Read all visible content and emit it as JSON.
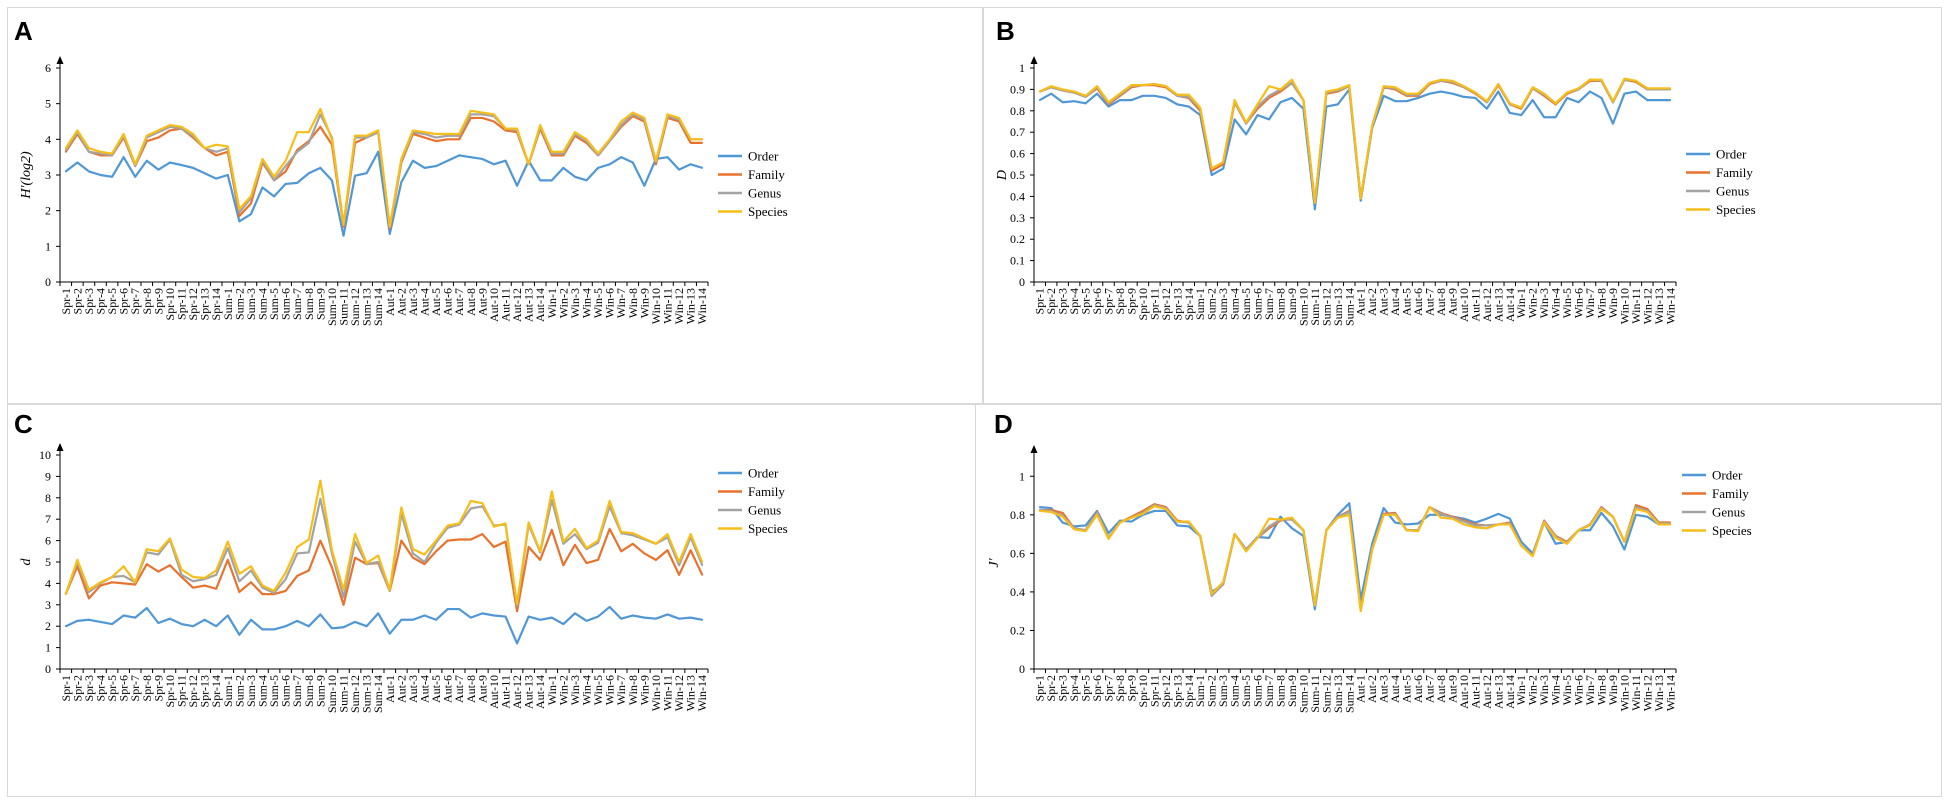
{
  "colors": {
    "Order": "#4f97d6",
    "Family": "#e8722e",
    "Genus": "#a3a3a3",
    "Species": "#f7bd18"
  },
  "categories": [
    "Spr-1",
    "Spr-2",
    "Spr-3",
    "Spr-4",
    "Spr-5",
    "Spr-6",
    "Spr-7",
    "Spr-8",
    "Spr-9",
    "Spr-10",
    "Spr-11",
    "Spr-12",
    "Spr-13",
    "Spr-14",
    "Sum-1",
    "Sum-2",
    "Sum-3",
    "Sum-4",
    "Sum-5",
    "Sum-6",
    "Sum-7",
    "Sum-8",
    "Sum-9",
    "Sum-10",
    "Sum-11",
    "Sum-12",
    "Sum-13",
    "Sum-14",
    "Aut-1",
    "Aut-2",
    "Aut-3",
    "Aut-4",
    "Aut-5",
    "Aut-6",
    "Aut-7",
    "Aut-8",
    "Aut-9",
    "Aut-10",
    "Aut-11",
    "Aut-12",
    "Aut-13",
    "Aut-14",
    "Win-1",
    "Win-2",
    "Win-3",
    "Win-4",
    "Win-5",
    "Win-6",
    "Win-7",
    "Win-8",
    "Win-9",
    "Win-10",
    "Win-11",
    "Win-12",
    "Win-13",
    "Win-14"
  ],
  "chart_data": [
    {
      "panel": "A",
      "type": "line",
      "title": "",
      "xlabel": "",
      "ylabel": "H'(log2)",
      "ylim": [
        0,
        6
      ],
      "yticks": [
        0,
        1,
        2,
        3,
        4,
        5,
        6
      ],
      "series": [
        {
          "name": "Order",
          "values": [
            3.1,
            3.35,
            3.1,
            3.0,
            2.95,
            3.5,
            2.95,
            3.4,
            3.15,
            3.35,
            3.28,
            3.2,
            3.05,
            2.9,
            3.0,
            1.7,
            1.9,
            2.65,
            2.4,
            2.75,
            2.78,
            3.05,
            3.2,
            2.85,
            1.3,
            2.98,
            3.05,
            3.65,
            1.35,
            2.8,
            3.4,
            3.2,
            3.25,
            3.4,
            3.55,
            3.5,
            3.45,
            3.3,
            3.4,
            2.7,
            3.4,
            2.85,
            2.85,
            3.2,
            2.95,
            2.85,
            3.2,
            3.3,
            3.5,
            3.35,
            2.7,
            3.45,
            3.5,
            3.15,
            3.3,
            3.2
          ]
        },
        {
          "name": "Family",
          "values": [
            3.65,
            4.15,
            3.65,
            3.55,
            3.55,
            4.05,
            3.25,
            3.95,
            4.05,
            4.25,
            4.3,
            4.05,
            3.75,
            3.55,
            3.65,
            1.85,
            2.2,
            3.35,
            2.85,
            3.1,
            3.7,
            3.95,
            4.35,
            3.85,
            1.55,
            3.9,
            4.05,
            4.2,
            1.5,
            3.35,
            4.15,
            4.05,
            3.95,
            4.0,
            4.0,
            4.6,
            4.6,
            4.5,
            4.25,
            4.2,
            3.3,
            4.3,
            3.55,
            3.55,
            4.1,
            3.9,
            3.55,
            3.95,
            4.35,
            4.65,
            4.5,
            3.3,
            4.6,
            4.5,
            3.9,
            3.9
          ]
        },
        {
          "name": "Genus",
          "values": [
            3.7,
            4.2,
            3.65,
            3.6,
            3.55,
            4.1,
            3.25,
            4.05,
            4.2,
            4.35,
            4.3,
            4.1,
            3.75,
            3.65,
            3.75,
            1.95,
            2.35,
            3.4,
            2.85,
            3.25,
            3.65,
            3.9,
            4.7,
            4.05,
            1.6,
            4.05,
            4.05,
            4.2,
            1.55,
            3.4,
            4.2,
            4.15,
            4.05,
            4.1,
            4.1,
            4.7,
            4.7,
            4.65,
            4.3,
            4.25,
            3.3,
            4.35,
            3.6,
            3.6,
            4.15,
            3.95,
            3.55,
            3.95,
            4.4,
            4.7,
            4.55,
            3.35,
            4.65,
            4.55,
            4.0,
            4.0
          ]
        },
        {
          "name": "Species",
          "values": [
            3.75,
            4.25,
            3.75,
            3.65,
            3.6,
            4.15,
            3.3,
            4.1,
            4.25,
            4.4,
            4.35,
            4.15,
            3.75,
            3.85,
            3.8,
            2.05,
            2.4,
            3.45,
            2.95,
            3.4,
            4.2,
            4.2,
            4.85,
            4.0,
            1.6,
            4.1,
            4.1,
            4.25,
            1.55,
            3.45,
            4.25,
            4.2,
            4.15,
            4.15,
            4.15,
            4.8,
            4.75,
            4.7,
            4.3,
            4.3,
            3.3,
            4.4,
            3.65,
            3.65,
            4.2,
            4.0,
            3.6,
            4.0,
            4.5,
            4.75,
            4.6,
            3.4,
            4.7,
            4.6,
            4.0,
            4.0
          ]
        }
      ],
      "legend": [
        "Order",
        "Family",
        "Genus",
        "Species"
      ],
      "legend_position": "right"
    },
    {
      "panel": "B",
      "type": "line",
      "title": "",
      "xlabel": "",
      "ylabel": "D",
      "ylim": [
        0,
        1
      ],
      "yticks": [
        0,
        0.1,
        0.2,
        0.3,
        0.4,
        0.5,
        0.6,
        0.7,
        0.8,
        0.9,
        1
      ],
      "series": [
        {
          "name": "Order",
          "values": [
            0.85,
            0.88,
            0.84,
            0.845,
            0.835,
            0.88,
            0.82,
            0.85,
            0.85,
            0.87,
            0.87,
            0.86,
            0.83,
            0.82,
            0.78,
            0.5,
            0.53,
            0.76,
            0.69,
            0.78,
            0.76,
            0.84,
            0.86,
            0.81,
            0.34,
            0.82,
            0.83,
            0.9,
            0.38,
            0.72,
            0.87,
            0.845,
            0.845,
            0.86,
            0.88,
            0.89,
            0.88,
            0.865,
            0.86,
            0.81,
            0.89,
            0.79,
            0.78,
            0.85,
            0.77,
            0.77,
            0.86,
            0.84,
            0.89,
            0.86,
            0.74,
            0.88,
            0.89,
            0.85,
            0.85,
            0.85
          ]
        },
        {
          "name": "Family",
          "values": [
            0.89,
            0.91,
            0.895,
            0.885,
            0.865,
            0.905,
            0.83,
            0.87,
            0.91,
            0.92,
            0.92,
            0.91,
            0.87,
            0.86,
            0.8,
            0.52,
            0.55,
            0.84,
            0.74,
            0.81,
            0.86,
            0.89,
            0.93,
            0.85,
            0.37,
            0.88,
            0.89,
            0.915,
            0.39,
            0.73,
            0.91,
            0.9,
            0.87,
            0.87,
            0.925,
            0.94,
            0.93,
            0.91,
            0.88,
            0.84,
            0.92,
            0.83,
            0.81,
            0.905,
            0.87,
            0.83,
            0.88,
            0.9,
            0.94,
            0.94,
            0.84,
            0.945,
            0.935,
            0.9,
            0.9,
            0.9
          ]
        },
        {
          "name": "Genus",
          "values": [
            0.89,
            0.91,
            0.895,
            0.885,
            0.865,
            0.91,
            0.835,
            0.875,
            0.915,
            0.92,
            0.925,
            0.915,
            0.87,
            0.865,
            0.81,
            0.53,
            0.56,
            0.845,
            0.74,
            0.82,
            0.87,
            0.9,
            0.93,
            0.85,
            0.37,
            0.885,
            0.895,
            0.915,
            0.39,
            0.73,
            0.91,
            0.905,
            0.875,
            0.875,
            0.93,
            0.94,
            0.935,
            0.91,
            0.885,
            0.84,
            0.925,
            0.83,
            0.815,
            0.905,
            0.875,
            0.835,
            0.885,
            0.9,
            0.945,
            0.94,
            0.84,
            0.945,
            0.94,
            0.9,
            0.9,
            0.9
          ]
        },
        {
          "name": "Species",
          "values": [
            0.89,
            0.915,
            0.9,
            0.89,
            0.87,
            0.915,
            0.84,
            0.88,
            0.92,
            0.92,
            0.925,
            0.915,
            0.875,
            0.875,
            0.815,
            0.53,
            0.56,
            0.85,
            0.745,
            0.83,
            0.915,
            0.9,
            0.945,
            0.85,
            0.37,
            0.89,
            0.9,
            0.92,
            0.39,
            0.73,
            0.915,
            0.91,
            0.88,
            0.88,
            0.93,
            0.945,
            0.94,
            0.915,
            0.885,
            0.845,
            0.925,
            0.835,
            0.815,
            0.91,
            0.88,
            0.835,
            0.885,
            0.905,
            0.945,
            0.945,
            0.845,
            0.95,
            0.94,
            0.905,
            0.905,
            0.905
          ]
        }
      ],
      "legend": [
        "Order",
        "Family",
        "Genus",
        "Species"
      ],
      "legend_position": "right"
    },
    {
      "panel": "C",
      "type": "line",
      "title": "",
      "xlabel": "",
      "ylabel": "d",
      "ylim": [
        0,
        10
      ],
      "yticks": [
        0,
        1,
        2,
        3,
        4,
        5,
        6,
        7,
        8,
        9,
        10
      ],
      "series": [
        {
          "name": "Order",
          "values": [
            2.0,
            2.25,
            2.3,
            2.2,
            2.1,
            2.5,
            2.4,
            2.85,
            2.15,
            2.35,
            2.1,
            2.0,
            2.3,
            2.0,
            2.5,
            1.6,
            2.3,
            1.85,
            1.85,
            2.0,
            2.25,
            2.0,
            2.55,
            1.9,
            1.95,
            2.2,
            2.0,
            2.6,
            1.65,
            2.3,
            2.3,
            2.5,
            2.3,
            2.8,
            2.8,
            2.4,
            2.6,
            2.5,
            2.45,
            1.2,
            2.45,
            2.3,
            2.4,
            2.1,
            2.6,
            2.25,
            2.45,
            2.9,
            2.35,
            2.5,
            2.4,
            2.35,
            2.55,
            2.35,
            2.4,
            2.3
          ]
        },
        {
          "name": "Family",
          "values": [
            3.5,
            4.8,
            3.3,
            3.9,
            4.05,
            4.0,
            3.95,
            4.9,
            4.55,
            4.85,
            4.3,
            3.8,
            3.9,
            3.75,
            5.1,
            3.6,
            4.05,
            3.5,
            3.5,
            3.65,
            4.35,
            4.6,
            6.0,
            4.75,
            3.0,
            5.2,
            4.9,
            4.95,
            3.65,
            6.0,
            5.2,
            4.9,
            5.5,
            6.0,
            6.05,
            6.05,
            6.3,
            5.7,
            5.95,
            2.7,
            5.7,
            5.1,
            6.5,
            4.85,
            5.8,
            4.95,
            5.1,
            6.55,
            5.5,
            5.85,
            5.4,
            5.1,
            5.55,
            4.4,
            5.55,
            4.4
          ]
        },
        {
          "name": "Genus",
          "values": [
            3.5,
            5.0,
            3.6,
            4.0,
            4.3,
            4.35,
            4.05,
            5.45,
            5.35,
            6.05,
            4.4,
            4.1,
            4.2,
            4.4,
            5.65,
            4.1,
            4.6,
            3.8,
            3.55,
            4.2,
            5.4,
            5.45,
            7.95,
            5.4,
            3.35,
            5.95,
            4.9,
            5.0,
            3.65,
            7.25,
            5.4,
            5.0,
            5.9,
            6.6,
            6.75,
            7.5,
            7.6,
            6.7,
            6.75,
            2.95,
            6.75,
            5.45,
            7.9,
            5.85,
            6.3,
            5.6,
            5.9,
            7.6,
            6.35,
            6.25,
            6.05,
            5.85,
            6.15,
            4.85,
            6.15,
            4.85
          ]
        },
        {
          "name": "Species",
          "values": [
            3.5,
            5.1,
            3.7,
            4.05,
            4.3,
            4.8,
            4.05,
            5.6,
            5.5,
            6.1,
            4.65,
            4.3,
            4.25,
            4.6,
            5.95,
            4.45,
            4.8,
            3.9,
            3.65,
            4.5,
            5.7,
            6.05,
            8.8,
            5.55,
            3.7,
            6.3,
            4.95,
            5.3,
            3.7,
            7.55,
            5.6,
            5.35,
            6.0,
            6.7,
            6.8,
            7.85,
            7.75,
            6.65,
            6.8,
            3.05,
            6.85,
            5.5,
            8.3,
            5.95,
            6.55,
            5.65,
            6.0,
            7.85,
            6.4,
            6.35,
            6.1,
            5.85,
            6.3,
            5.0,
            6.3,
            5.0
          ]
        }
      ],
      "legend": [
        "Order",
        "Family",
        "Genus",
        "Species"
      ],
      "legend_position": "right"
    },
    {
      "panel": "D",
      "type": "line",
      "title": "",
      "xlabel": "",
      "ylabel": "J'",
      "ylim": [
        0,
        1.1
      ],
      "yticks": [
        0,
        0.2,
        0.4,
        0.6,
        0.8,
        1
      ],
      "series": [
        {
          "name": "Order",
          "values": [
            0.84,
            0.835,
            0.76,
            0.74,
            0.745,
            0.82,
            0.705,
            0.77,
            0.765,
            0.8,
            0.82,
            0.82,
            0.745,
            0.74,
            0.69,
            0.4,
            0.44,
            0.7,
            0.62,
            0.685,
            0.68,
            0.79,
            0.73,
            0.69,
            0.31,
            0.72,
            0.8,
            0.86,
            0.36,
            0.65,
            0.835,
            0.76,
            0.75,
            0.755,
            0.8,
            0.8,
            0.79,
            0.78,
            0.76,
            0.78,
            0.805,
            0.78,
            0.66,
            0.6,
            0.76,
            0.65,
            0.66,
            0.72,
            0.72,
            0.81,
            0.74,
            0.62,
            0.8,
            0.79,
            0.75,
            0.75
          ]
        },
        {
          "name": "Family",
          "values": [
            0.825,
            0.825,
            0.81,
            0.73,
            0.72,
            0.815,
            0.68,
            0.76,
            0.79,
            0.82,
            0.855,
            0.84,
            0.77,
            0.76,
            0.69,
            0.38,
            0.44,
            0.7,
            0.62,
            0.68,
            0.73,
            0.77,
            0.78,
            0.72,
            0.33,
            0.72,
            0.79,
            0.82,
            0.31,
            0.62,
            0.805,
            0.81,
            0.72,
            0.72,
            0.84,
            0.81,
            0.79,
            0.77,
            0.75,
            0.745,
            0.75,
            0.76,
            0.64,
            0.59,
            0.77,
            0.69,
            0.66,
            0.72,
            0.75,
            0.84,
            0.79,
            0.66,
            0.85,
            0.83,
            0.76,
            0.76
          ]
        },
        {
          "name": "Genus",
          "values": [
            0.825,
            0.82,
            0.795,
            0.73,
            0.72,
            0.81,
            0.68,
            0.76,
            0.785,
            0.81,
            0.85,
            0.835,
            0.765,
            0.76,
            0.69,
            0.38,
            0.44,
            0.7,
            0.62,
            0.68,
            0.74,
            0.775,
            0.775,
            0.72,
            0.33,
            0.72,
            0.79,
            0.815,
            0.31,
            0.62,
            0.8,
            0.805,
            0.72,
            0.72,
            0.84,
            0.805,
            0.785,
            0.765,
            0.745,
            0.745,
            0.75,
            0.755,
            0.64,
            0.59,
            0.765,
            0.685,
            0.655,
            0.72,
            0.75,
            0.835,
            0.79,
            0.66,
            0.84,
            0.82,
            0.755,
            0.755
          ]
        },
        {
          "name": "Species",
          "values": [
            0.82,
            0.815,
            0.79,
            0.725,
            0.715,
            0.8,
            0.675,
            0.76,
            0.785,
            0.805,
            0.845,
            0.83,
            0.765,
            0.765,
            0.69,
            0.39,
            0.45,
            0.7,
            0.61,
            0.68,
            0.78,
            0.775,
            0.785,
            0.72,
            0.33,
            0.72,
            0.785,
            0.8,
            0.3,
            0.62,
            0.8,
            0.8,
            0.72,
            0.715,
            0.84,
            0.785,
            0.78,
            0.75,
            0.735,
            0.73,
            0.75,
            0.75,
            0.64,
            0.585,
            0.76,
            0.68,
            0.65,
            0.72,
            0.745,
            0.83,
            0.79,
            0.66,
            0.83,
            0.815,
            0.75,
            0.75
          ]
        }
      ],
      "legend": [
        "Order",
        "Family",
        "Genus",
        "Species"
      ],
      "legend_position": "right"
    }
  ]
}
